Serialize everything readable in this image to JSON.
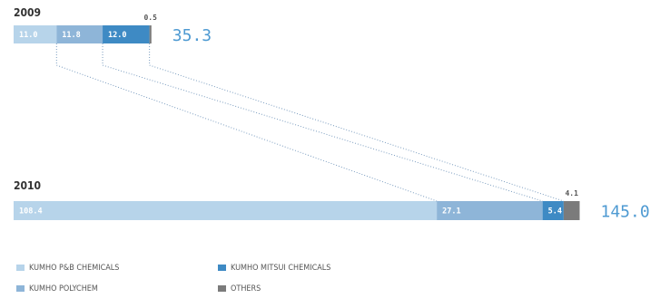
{
  "colors": {
    "kumho_pb": "#b7d4ea",
    "kumho_polychem": "#8eb5d8",
    "kumho_mitsui": "#3e8ac4",
    "others": "#7b7b7b",
    "total": "#4e9ad2"
  },
  "chart_data": {
    "type": "bar",
    "orientation": "horizontal",
    "stacked": true,
    "categories": [
      "2009",
      "2010"
    ],
    "series": [
      {
        "name": "KUMHO P&B CHEMICALS",
        "values": [
          11.0,
          108.4
        ],
        "labels": [
          "11.0",
          "108.4"
        ],
        "color": "#b7d4ea"
      },
      {
        "name": "KUMHO POLYCHEM",
        "values": [
          11.8,
          27.1
        ],
        "labels": [
          "11.8",
          "27.1"
        ],
        "color": "#8eb5d8"
      },
      {
        "name": "KUMHO MITSUI CHEMICALS",
        "values": [
          12.0,
          5.4
        ],
        "labels": [
          "12.0",
          "5.4"
        ],
        "color": "#3e8ac4"
      },
      {
        "name": "OTHERS",
        "values": [
          0.5,
          4.1
        ],
        "labels": [
          "0.5",
          "4.1"
        ],
        "color": "#7b7b7b"
      }
    ],
    "totals": [
      "35.3",
      "145.0"
    ],
    "legend": [
      "KUMHO P&B CHEMICALS",
      "KUMHO MITSUI CHEMICALS",
      "KUMHO POLYCHEM",
      "OTHERS"
    ],
    "legend_position": "bottom-left",
    "grid": false,
    "connector_lines": "dotted"
  }
}
